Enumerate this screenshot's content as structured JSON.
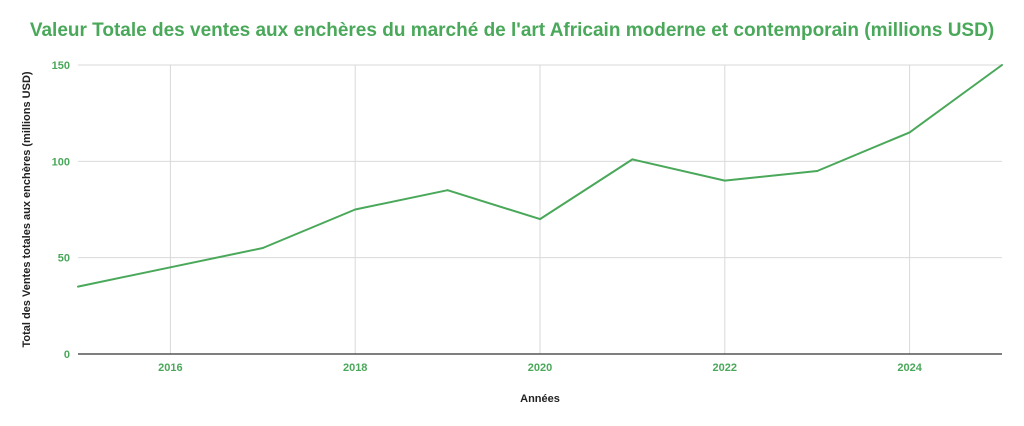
{
  "chart_data": {
    "type": "line",
    "title": "Valeur Totale des ventes aux enchères du marché de l'art Africain moderne et contemporain (millions USD)",
    "xlabel": "Années",
    "ylabel": "Total des Ventes totales aux enchères (millions USD)",
    "x": [
      2015,
      2016,
      2017,
      2018,
      2019,
      2020,
      2021,
      2022,
      2023,
      2024,
      2025
    ],
    "series": [
      {
        "values": [
          35,
          45,
          55,
          75,
          85,
          70,
          101,
          90,
          95,
          115,
          150
        ]
      }
    ],
    "xlim": [
      2015,
      2025
    ],
    "ylim": [
      0,
      150
    ],
    "xticks": [
      2016,
      2018,
      2020,
      2022,
      2024
    ],
    "yticks": [
      0,
      50,
      100,
      150
    ],
    "grid": true,
    "colors": {
      "line": "#4aa85a",
      "title": "#4aa85a",
      "ticks": "#4aa85a",
      "grid": "#d9d9d9",
      "axis": "#333333"
    }
  }
}
